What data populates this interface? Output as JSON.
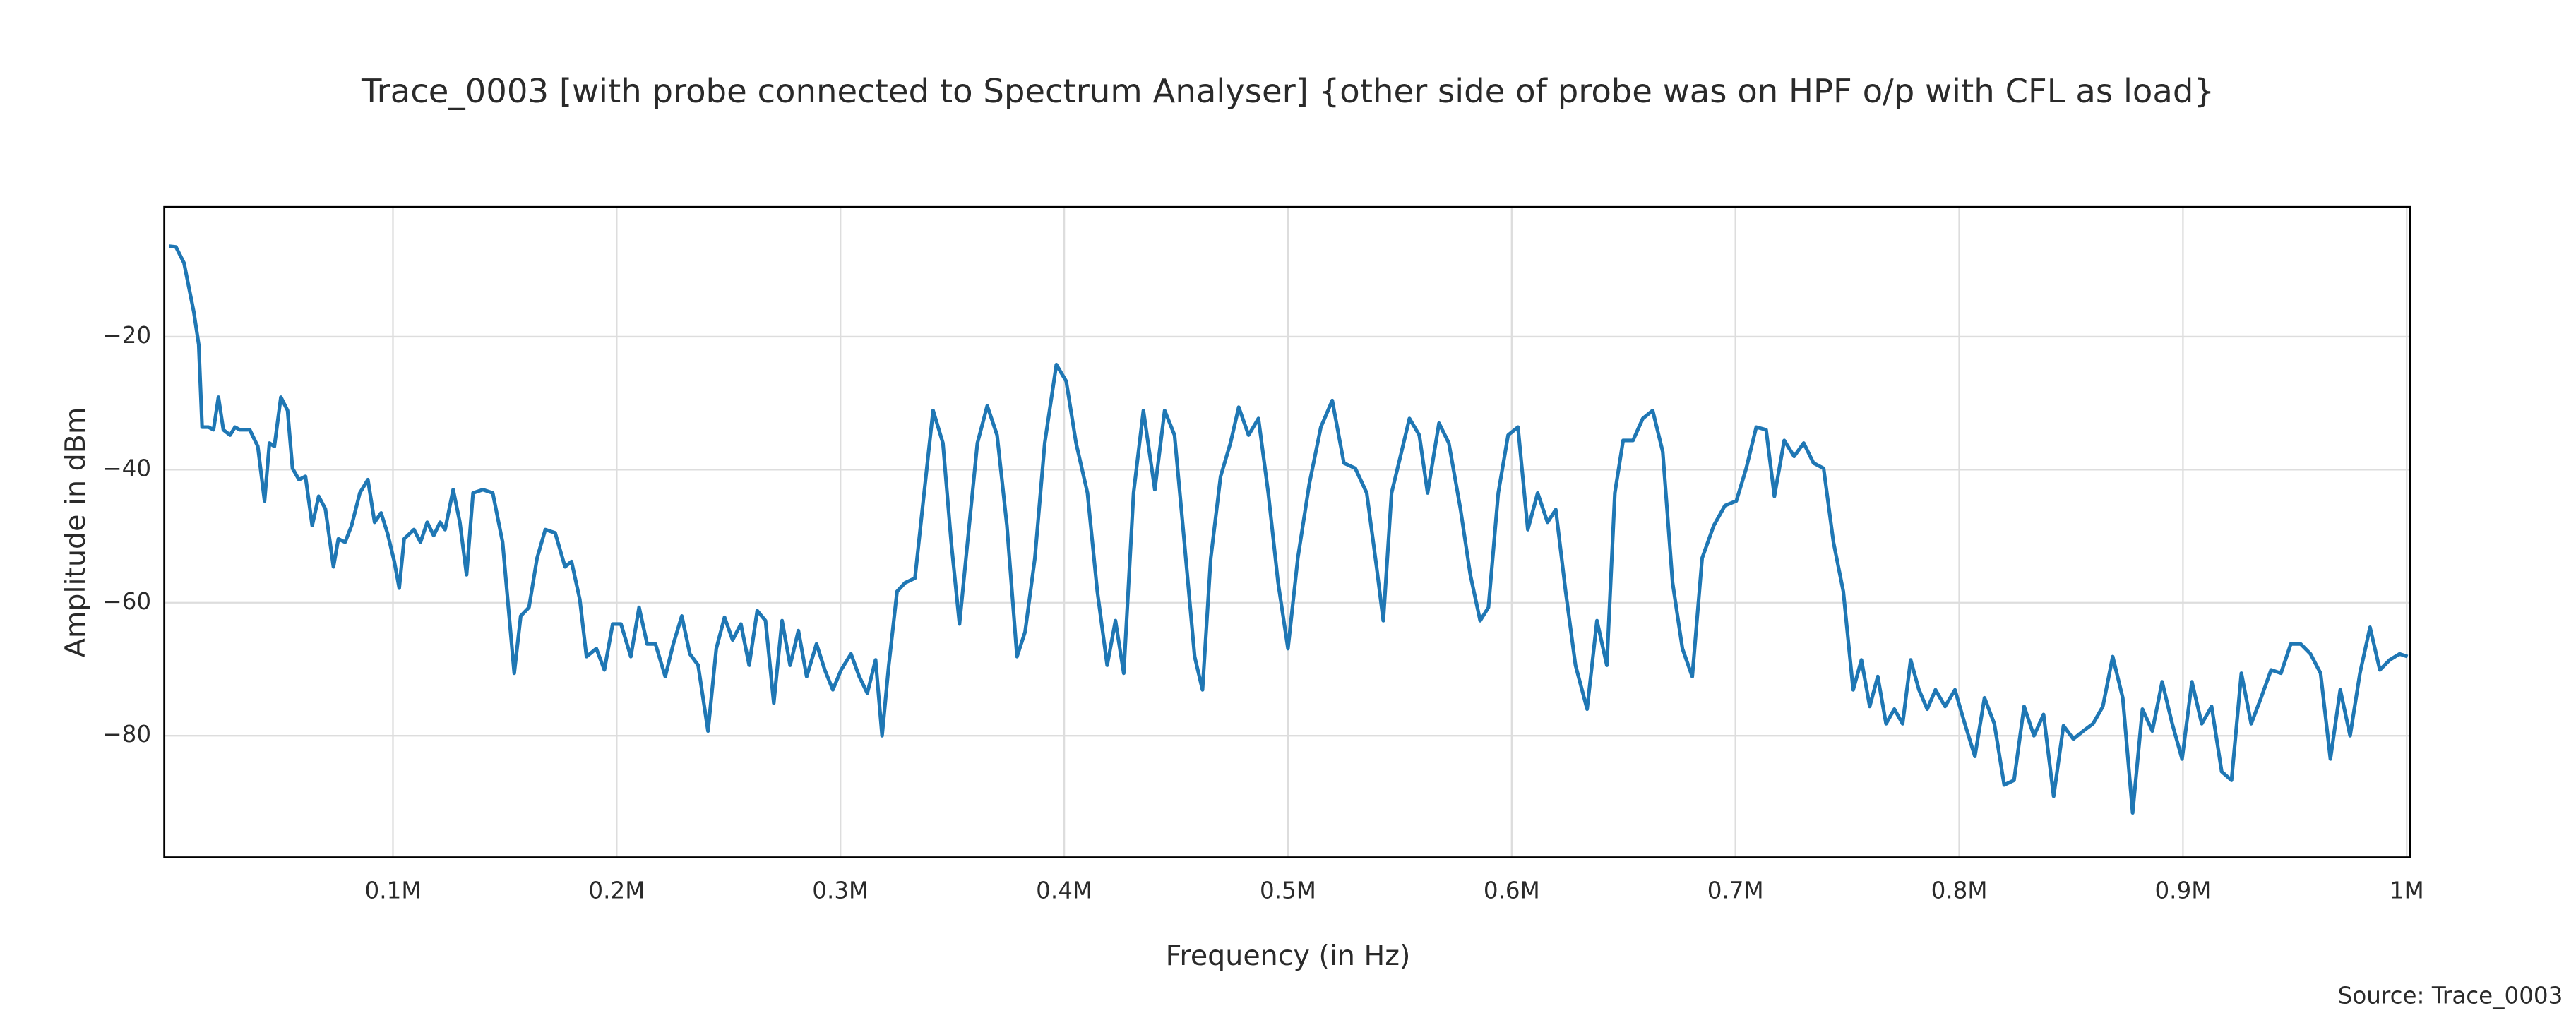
{
  "chart_data": {
    "type": "line",
    "title": "Trace_0003 [with probe connected to Spectrum Analyser] {other side of probe was on HPF o/p with CFL as load}",
    "x_label": "Frequency (in Hz)",
    "y_label": "Amplitude in dBm",
    "annotation": "Source: Trace_0003",
    "color": "#1f77b4",
    "grid": true,
    "xlim": [
      -2200,
      1001500
    ],
    "ylim": [
      -98.3,
      -0.5
    ],
    "xticks": [
      {
        "value": 100000,
        "label": "0.1M"
      },
      {
        "value": 200000,
        "label": "0.2M"
      },
      {
        "value": 300000,
        "label": "0.3M"
      },
      {
        "value": 400000,
        "label": "0.4M"
      },
      {
        "value": 500000,
        "label": "0.5M"
      },
      {
        "value": 600000,
        "label": "0.6M"
      },
      {
        "value": 700000,
        "label": "0.7M"
      },
      {
        "value": 800000,
        "label": "0.8M"
      },
      {
        "value": 900000,
        "label": "0.9M"
      },
      {
        "value": 1000000,
        "label": "1M"
      }
    ],
    "yticks": [
      {
        "value": -80,
        "label": "−80"
      },
      {
        "value": -60,
        "label": "−60"
      },
      {
        "value": -40,
        "label": "−40"
      },
      {
        "value": -20,
        "label": "−20"
      }
    ],
    "x": [
      0,
      3000,
      6600,
      11000,
      13200,
      14700,
      17600,
      19800,
      22000,
      24200,
      27200,
      29400,
      31600,
      36000,
      39600,
      42600,
      44800,
      47000,
      49900,
      52900,
      55100,
      58000,
      60900,
      63900,
      66800,
      69800,
      73400,
      75600,
      78600,
      81500,
      85200,
      88800,
      91800,
      94700,
      97600,
      100600,
      102800,
      105000,
      109400,
      112300,
      115300,
      118200,
      121100,
      123300,
      126900,
      129900,
      132900,
      135800,
      140200,
      144600,
      149000,
      154200,
      157100,
      160800,
      164400,
      168100,
      172500,
      176900,
      179800,
      183500,
      186500,
      190900,
      194500,
      198200,
      201900,
      206300,
      210000,
      213600,
      217300,
      221700,
      225300,
      229100,
      232700,
      236400,
      240800,
      244500,
      248200,
      251800,
      255500,
      259200,
      262800,
      266500,
      270200,
      273900,
      277500,
      281200,
      284900,
      289300,
      293000,
      296600,
      300300,
      304700,
      308400,
      312000,
      315700,
      318600,
      321600,
      325300,
      328900,
      333300,
      337000,
      341400,
      345800,
      349500,
      353200,
      356800,
      361200,
      365600,
      370000,
      374400,
      378900,
      382500,
      386900,
      391300,
      396500,
      400900,
      405300,
      410400,
      414800,
      419200,
      422900,
      426600,
      431000,
      435400,
      440500,
      444900,
      449300,
      453700,
      458300,
      461800,
      465500,
      469900,
      474300,
      478000,
      482400,
      486800,
      491200,
      495600,
      500000,
      504400,
      509500,
      514700,
      519800,
      525000,
      530100,
      535200,
      539600,
      542600,
      546300,
      549900,
      554300,
      558700,
      562400,
      567500,
      571900,
      577100,
      581500,
      585900,
      589600,
      594000,
      598400,
      602800,
      607200,
      611600,
      616000,
      619700,
      624100,
      628500,
      633700,
      638100,
      642500,
      646100,
      649800,
      654200,
      658600,
      663000,
      667500,
      671900,
      676300,
      680700,
      685100,
      690300,
      695300,
      700400,
      704800,
      709300,
      713700,
      717400,
      721800,
      726200,
      730500,
      734900,
      739400,
      743800,
      748200,
      752600,
      756300,
      760000,
      763600,
      767300,
      771000,
      774700,
      778300,
      782000,
      785700,
      789400,
      793700,
      798100,
      802500,
      807000,
      811300,
      815700,
      820100,
      824500,
      829000,
      833400,
      837700,
      842200,
      846600,
      851000,
      855400,
      859800,
      864200,
      868600,
      873100,
      877500,
      881900,
      886300,
      890700,
      895200,
      899600,
      904000,
      908400,
      912800,
      917300,
      921700,
      926100,
      930500,
      934900,
      939400,
      943800,
      948200,
      952600,
      957000,
      961500,
      965900,
      970300,
      974700,
      979100,
      983600,
      988000,
      992400,
      996800,
      1000400
    ],
    "values": [
      -6.4,
      -6.5,
      -8.9,
      -16.3,
      -21.2,
      -33.6,
      -33.6,
      -34,
      -29.1,
      -34,
      -34.8,
      -33.6,
      -34,
      -34,
      -36.5,
      -44.7,
      -36,
      -36.5,
      -29.1,
      -31.1,
      -39.8,
      -41.5,
      -41,
      -48.4,
      -44,
      -45.9,
      -54.6,
      -50.4,
      -50.9,
      -48.4,
      -43.5,
      -41.5,
      -47.9,
      -46.5,
      -49.6,
      -53.8,
      -57.8,
      -50.4,
      -49,
      -50.9,
      -47.9,
      -49.9,
      -47.9,
      -49,
      -43,
      -47.9,
      -55.8,
      -43.5,
      -43,
      -43.5,
      -50.9,
      -70.6,
      -62,
      -60.7,
      -53.3,
      -49,
      -49.5,
      -54.6,
      -53.8,
      -59.5,
      -68.1,
      -66.9,
      -70.1,
      -63.2,
      -63.2,
      -68.1,
      -60.7,
      -66.2,
      -66.2,
      -71.1,
      -66.2,
      -62,
      -67.7,
      -69.4,
      -79.3,
      -66.9,
      -62.2,
      -65.6,
      -63.2,
      -69.4,
      -61.2,
      -62.7,
      -75.1,
      -62.7,
      -69.4,
      -64.2,
      -71.1,
      -66.2,
      -70.1,
      -73.1,
      -70.1,
      -67.7,
      -71.1,
      -73.6,
      -68.6,
      -80,
      -69.4,
      -58.3,
      -57,
      -56.3,
      -44.7,
      -31.1,
      -36,
      -50.9,
      -63.2,
      -50.9,
      -36,
      -30.4,
      -34.8,
      -48.4,
      -68.1,
      -64.4,
      -53.3,
      -36,
      -24.2,
      -26.7,
      -36,
      -43.5,
      -58.3,
      -69.4,
      -62.7,
      -70.6,
      -43.5,
      -31.1,
      -43,
      -31.1,
      -34.8,
      -50.9,
      -68.1,
      -73.1,
      -53.3,
      -41,
      -36,
      -30.6,
      -34.8,
      -32.3,
      -43.5,
      -57,
      -66.9,
      -53.3,
      -42.2,
      -33.6,
      -29.6,
      -39,
      -39.8,
      -43.5,
      -54.6,
      -62.7,
      -43.5,
      -38.5,
      -32.3,
      -34.8,
      -43.5,
      -33,
      -36,
      -45.9,
      -55.8,
      -62.7,
      -60.7,
      -43.5,
      -34.8,
      -33.6,
      -49,
      -43.5,
      -47.9,
      -46,
      -58.3,
      -69.4,
      -76,
      -62.7,
      -69.4,
      -43.5,
      -35.6,
      -35.6,
      -32.3,
      -31.1,
      -37.3,
      -57,
      -66.9,
      -71.1,
      -53.3,
      -48.4,
      -45.4,
      -44.7,
      -39.8,
      -33.6,
      -34,
      -44,
      -35.6,
      -38,
      -36,
      -39,
      -39.8,
      -50.9,
      -58.3,
      -73.1,
      -68.6,
      -75.6,
      -71.1,
      -78.2,
      -76,
      -78.2,
      -68.6,
      -73.1,
      -76,
      -73.1,
      -75.6,
      -73.1,
      -78.2,
      -83.1,
      -74.3,
      -78.2,
      -87.4,
      -86.7,
      -75.6,
      -80,
      -76.8,
      -89.1,
      -78.5,
      -80.5,
      -79.3,
      -78.2,
      -75.6,
      -68.1,
      -74.3,
      -91.6,
      -76,
      -79.3,
      -71.9,
      -78.2,
      -83.5,
      -71.9,
      -78.2,
      -75.6,
      -85.4,
      -86.7,
      -70.6,
      -78.2,
      -74.3,
      -70.1,
      -70.6,
      -66.2,
      -66.2,
      -67.7,
      -70.6,
      -83.5,
      -73.1,
      -80,
      -70.6,
      -63.7,
      -70.1,
      -68.6,
      -67.7,
      -68.1
    ]
  }
}
